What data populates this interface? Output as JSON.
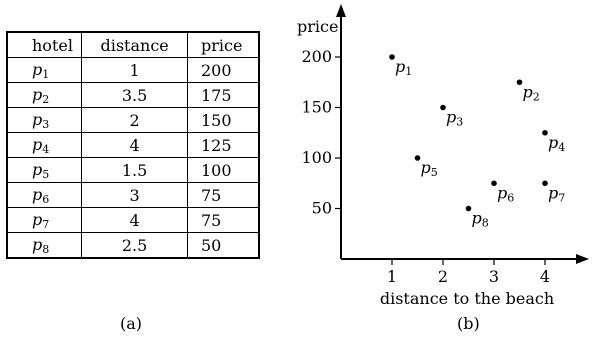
{
  "table": {
    "headers": [
      "hotel",
      "distance",
      "price"
    ],
    "rows": [
      {
        "symbol": "p",
        "index": "1",
        "distance": "1",
        "price": "200"
      },
      {
        "symbol": "p",
        "index": "2",
        "distance": "3.5",
        "price": "175"
      },
      {
        "symbol": "p",
        "index": "3",
        "distance": "2",
        "price": "150"
      },
      {
        "symbol": "p",
        "index": "4",
        "distance": "4",
        "price": "125"
      },
      {
        "symbol": "p",
        "index": "5",
        "distance": "1.5",
        "price": "100"
      },
      {
        "symbol": "p",
        "index": "6",
        "distance": "3",
        "price": "75"
      },
      {
        "symbol": "p",
        "index": "7",
        "distance": "4",
        "price": "75"
      },
      {
        "symbol": "p",
        "index": "8",
        "distance": "2.5",
        "price": "50"
      }
    ]
  },
  "captions": {
    "a": "(a)",
    "b": "(b)"
  },
  "chart_data": {
    "type": "scatter",
    "xlabel": "distance to the beach",
    "ylabel": "price",
    "xticks": [
      "1",
      "2",
      "3",
      "4"
    ],
    "yticks": [
      "50",
      "100",
      "150",
      "200"
    ],
    "xlim": [
      0,
      4.6
    ],
    "ylim": [
      0,
      245
    ],
    "grid": false,
    "points": [
      {
        "label_symbol": "p",
        "label_index": "1",
        "x": 1,
        "y": 200
      },
      {
        "label_symbol": "p",
        "label_index": "2",
        "x": 3.5,
        "y": 175
      },
      {
        "label_symbol": "p",
        "label_index": "3",
        "x": 2,
        "y": 150
      },
      {
        "label_symbol": "p",
        "label_index": "4",
        "x": 4,
        "y": 125
      },
      {
        "label_symbol": "p",
        "label_index": "5",
        "x": 1.5,
        "y": 100
      },
      {
        "label_symbol": "p",
        "label_index": "6",
        "x": 3,
        "y": 75
      },
      {
        "label_symbol": "p",
        "label_index": "7",
        "x": 4,
        "y": 75
      },
      {
        "label_symbol": "p",
        "label_index": "8",
        "x": 2.5,
        "y": 50
      }
    ]
  }
}
